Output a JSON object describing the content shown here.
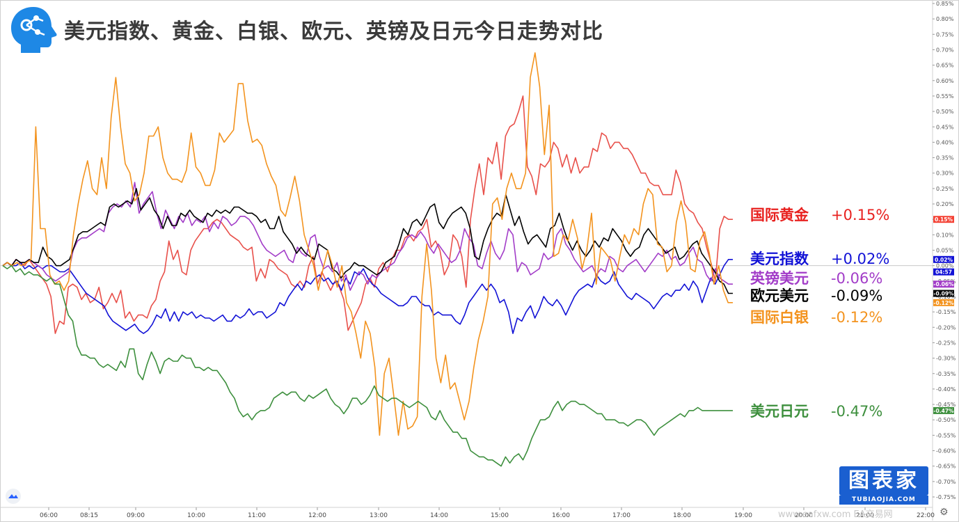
{
  "title": "美元指数、黄金、白银、欧元、英镑及日元今日走势对比",
  "brand": {
    "main": "图表家",
    "sub": "TUBIAOJIA.COM"
  },
  "watermark": "www.eafxw.com  EA交易网",
  "chart_data": {
    "type": "line",
    "y_unit": "%",
    "ylim": [
      -0.77,
      0.87
    ],
    "y_ticks": [
      "0.85%",
      "0.80%",
      "0.75%",
      "0.70%",
      "0.65%",
      "0.60%",
      "0.55%",
      "0.50%",
      "0.45%",
      "0.40%",
      "0.35%",
      "0.30%",
      "0.25%",
      "0.20%",
      "0.15%",
      "0.10%",
      "0.05%",
      "0.00%",
      "-0.05%",
      "-0.10%",
      "-0.15%",
      "-0.20%",
      "-0.25%",
      "-0.30%",
      "-0.35%",
      "-0.40%",
      "-0.45%",
      "-0.50%",
      "-0.55%",
      "-0.60%",
      "-0.65%",
      "-0.70%",
      "-0.75%"
    ],
    "x_ticks": [
      "06:00",
      "08:15",
      "09:00",
      "10:00",
      "11:00",
      "12:00",
      "13:00",
      "14:00",
      "15:00",
      "16:00",
      "17:00",
      "18:00",
      "19:00",
      "20:00",
      "21:00",
      "22:00"
    ],
    "x_start": "04:57",
    "x_end": "18:52",
    "current_time_label": "04:57",
    "legend": [
      {
        "name": "国际黄金",
        "value": "+0.15%",
        "color": "#e8211f"
      },
      {
        "name": "美元指数",
        "value": "+0.02%",
        "color": "#1212d6"
      },
      {
        "name": "英镑美元",
        "value": "-0.06%",
        "color": "#a23cc8"
      },
      {
        "name": "欧元美元",
        "value": "-0.09%",
        "color": "#000000"
      },
      {
        "name": "国际白银",
        "value": "-0.12%",
        "color": "#f3931e"
      },
      {
        "name": "美元日元",
        "value": "-0.47%",
        "color": "#3d8f3d"
      }
    ],
    "series": [
      {
        "name": "国际黄金",
        "color": "#e8504a",
        "last": "0.15%",
        "values": [
          0,
          0.01,
          0,
          0.02,
          0.01,
          0,
          0.02,
          0,
          -0.02,
          -0.04,
          -0.06,
          -0.1,
          -0.22,
          -0.18,
          -0.19,
          -0.07,
          -0.06,
          -0.07,
          -0.11,
          -0.09,
          -0.12,
          -0.11,
          -0.07,
          -0.14,
          -0.12,
          -0.09,
          -0.12,
          -0.08,
          -0.17,
          -0.15,
          -0.18,
          -0.16,
          -0.16,
          -0.17,
          -0.13,
          -0.11,
          -0.05,
          -0.02,
          0.08,
          0.02,
          0.05,
          -0.02,
          -0.03,
          0.05,
          0.08,
          0.1,
          0.12,
          0.12,
          0.14,
          0.15,
          0.14,
          0.12,
          0.1,
          0.09,
          0.08,
          0.06,
          0.05,
          0.06,
          -0.05,
          -0.01,
          -0.04,
          0.02,
          0.01,
          -0.01,
          -0.02,
          -0.03,
          -0.06,
          -0.07,
          -0.05,
          -0.07,
          0,
          0.03,
          -0.06,
          -0.02,
          -0.05,
          -0.08,
          -0.05,
          -0.07,
          -0.11,
          -0.21,
          -0.18,
          -0.15,
          -0.12,
          -0.06,
          -0.04,
          -0.07,
          -0.01,
          0.01,
          -0.02,
          0.02,
          0.05,
          0.05,
          0.09,
          0.1,
          0.08,
          0.11,
          0.12,
          0.15,
          0.06,
          0.08,
          0.05,
          -0.03,
          0,
          0.1,
          0.08,
          0.03,
          -0.07,
          0.15,
          0.25,
          0.33,
          0.23,
          0.35,
          0.33,
          0.4,
          0.28,
          0.42,
          0.45,
          0.46,
          0.5,
          0.55,
          0.32,
          0.29,
          0.23,
          0.33,
          0.32,
          0.34,
          0.4,
          0.38,
          0.32,
          0.36,
          0.3,
          0.35,
          0.3,
          0.32,
          0.32,
          0.38,
          0.37,
          0.43,
          0.42,
          0.38,
          0.4,
          0.4,
          0.38,
          0.38,
          0.36,
          0.33,
          0.3,
          0.3,
          0.27,
          0.26,
          0.26,
          0.23,
          0.23,
          0.23,
          0.31,
          0.27,
          0.2,
          0.18,
          0.17,
          0.14,
          0.12,
          0.06,
          0.01,
          -0.05,
          0.12,
          0.16,
          0.15,
          0.15
        ]
      },
      {
        "name": "美元指数",
        "color": "#1212d6",
        "last": "0.02%",
        "values": [
          0,
          0.01,
          0,
          0,
          0.01,
          -0.01,
          0,
          -0.01,
          0,
          -0.01,
          0,
          0,
          -0.01,
          -0.02,
          -0.02,
          -0.01,
          -0.03,
          -0.05,
          -0.07,
          -0.09,
          -0.1,
          -0.11,
          -0.12,
          -0.13,
          -0.16,
          -0.18,
          -0.19,
          -0.2,
          -0.21,
          -0.2,
          -0.19,
          -0.21,
          -0.22,
          -0.21,
          -0.19,
          -0.16,
          -0.17,
          -0.14,
          -0.18,
          -0.15,
          -0.18,
          -0.15,
          -0.16,
          -0.15,
          -0.17,
          -0.16,
          -0.17,
          -0.17,
          -0.18,
          -0.17,
          -0.16,
          -0.18,
          -0.18,
          -0.16,
          -0.17,
          -0.16,
          -0.14,
          -0.16,
          -0.15,
          -0.15,
          -0.17,
          -0.16,
          -0.15,
          -0.12,
          -0.13,
          -0.1,
          -0.08,
          -0.06,
          -0.08,
          -0.05,
          -0.06,
          -0.04,
          -0.03,
          -0.05,
          -0.04,
          -0.06,
          -0.05,
          -0.08,
          -0.04,
          -0.06,
          -0.02,
          -0.03,
          -0.01,
          -0.04,
          -0.06,
          -0.07,
          -0.09,
          -0.1,
          -0.11,
          -0.12,
          -0.13,
          -0.13,
          -0.12,
          -0.1,
          -0.1,
          -0.12,
          -0.13,
          -0.13,
          -0.16,
          -0.15,
          -0.16,
          -0.16,
          -0.16,
          -0.18,
          -0.19,
          -0.16,
          -0.12,
          -0.1,
          -0.08,
          -0.06,
          -0.08,
          -0.06,
          -0.08,
          -0.12,
          -0.11,
          -0.15,
          -0.22,
          -0.17,
          -0.18,
          -0.15,
          -0.13,
          -0.17,
          -0.14,
          -0.1,
          -0.12,
          -0.13,
          -0.11,
          -0.13,
          -0.16,
          -0.13,
          -0.1,
          -0.08,
          -0.07,
          -0.06,
          -0.07,
          -0.03,
          -0.05,
          -0.06,
          -0.05,
          -0.02,
          -0.06,
          -0.08,
          -0.1,
          -0.11,
          -0.09,
          -0.1,
          -0.11,
          -0.12,
          -0.14,
          -0.12,
          -0.1,
          -0.09,
          -0.1,
          -0.08,
          -0.08,
          -0.06,
          -0.08,
          -0.05,
          -0.07,
          -0.12,
          -0.08,
          -0.04,
          -0.06,
          -0.03,
          0,
          0.02,
          0.02
        ]
      },
      {
        "name": "英镑美元",
        "color": "#a23cc8",
        "last": "-0.06%",
        "values": [
          0,
          0.01,
          0,
          0.02,
          0.01,
          0.01,
          0.02,
          0.01,
          0,
          -0.01,
          -0.03,
          -0.04,
          -0.05,
          -0.04,
          -0.03,
          -0.02,
          0.05,
          0.08,
          0.09,
          0.09,
          0.1,
          0.11,
          0.12,
          0.11,
          0.17,
          0.19,
          0.2,
          0.19,
          0.21,
          0.19,
          0.27,
          0.17,
          0.2,
          0.22,
          0.24,
          0.17,
          0.12,
          0.18,
          0.15,
          0.12,
          0.16,
          0.14,
          0.17,
          0.13,
          0.15,
          0.14,
          0.16,
          0.11,
          0.14,
          0.12,
          0.16,
          0.15,
          0.13,
          0.14,
          0.16,
          0.16,
          0.15,
          0.13,
          0.1,
          0.07,
          0.05,
          0.04,
          0.03,
          0.04,
          0.05,
          0.02,
          0.01,
          0.06,
          0.04,
          0.03,
          0.09,
          0.1,
          0.03,
          -0.01,
          0,
          -0.02,
          0.01,
          -0.05,
          -0.03,
          -0.08,
          -0.05,
          -0.02,
          -0.03,
          -0.06,
          -0.03,
          -0.04,
          -0.02,
          -0.01,
          0,
          0.01,
          0.04,
          0.06,
          0.09,
          0.1,
          0.09,
          0.11,
          0.09,
          0.06,
          0.04,
          0.07,
          0.05,
          0.03,
          0.01,
          0.02,
          0.05,
          0.12,
          0.09,
          0.07,
          0,
          -0.01,
          0.04,
          0.08,
          0.04,
          0.02,
          0.05,
          0.12,
          0.1,
          -0.02,
          0.01,
          0,
          -0.03,
          -0.02,
          -0.01,
          0.04,
          0.02,
          0.03,
          0.1,
          0.12,
          0.07,
          0.05,
          0.02,
          0,
          -0.02,
          -0.01,
          0,
          -0.03,
          -0.01,
          -0.02,
          0.03,
          0.02,
          -0.01,
          -0.02,
          0,
          0.01,
          0.02,
          0,
          -0.02,
          0,
          0.02,
          0.04,
          0.03,
          0.05,
          0.02,
          0.03,
          0,
          0.01,
          0.04,
          0.06,
          0.02,
          0.01,
          -0.03,
          -0.05,
          -0.01,
          -0.04,
          -0.05,
          -0.06,
          -0.06
        ]
      },
      {
        "name": "欧元美元",
        "color": "#000000",
        "last": "-0.09%",
        "values": [
          0,
          0.01,
          0,
          0.02,
          0.01,
          0.01,
          0.02,
          0.01,
          0.01,
          0.06,
          0.03,
          0.02,
          0,
          0,
          0.01,
          0.02,
          0.06,
          0.1,
          0.11,
          0.11,
          0.12,
          0.13,
          0.14,
          0.13,
          0.19,
          0.2,
          0.19,
          0.2,
          0.21,
          0.2,
          0.25,
          0.18,
          0.2,
          0.22,
          0.18,
          0.16,
          0.12,
          0.16,
          0.13,
          0.13,
          0.17,
          0.16,
          0.18,
          0.16,
          0.15,
          0.14,
          0.17,
          0.16,
          0.18,
          0.17,
          0.18,
          0.17,
          0.19,
          0.19,
          0.18,
          0.17,
          0.17,
          0.16,
          0.14,
          0.15,
          0.12,
          0.12,
          0.16,
          0.11,
          0.09,
          0.07,
          0.04,
          0.06,
          0.04,
          0.03,
          0.02,
          0.07,
          0.06,
          0.05,
          -0.01,
          -0.02,
          -0.04,
          -0.02,
          -0.01,
          0.01,
          0,
          0,
          -0.01,
          -0.02,
          -0.03,
          -0.02,
          0.01,
          0.02,
          0.03,
          0.07,
          0.12,
          0.1,
          0.14,
          0.15,
          0.13,
          0.16,
          0.19,
          0.2,
          0.14,
          0.12,
          0.15,
          0.17,
          0.18,
          0.19,
          0.17,
          0.12,
          0.03,
          0.02,
          0.08,
          0.12,
          0.15,
          0.17,
          0.16,
          0.23,
          0.18,
          0.13,
          0.16,
          0.11,
          0.07,
          0.09,
          0.1,
          0.08,
          0.06,
          0.12,
          0.13,
          0.17,
          0.12,
          0.08,
          0.05,
          0.08,
          0.05,
          0.03,
          0.05,
          0.08,
          0.06,
          0.09,
          0.08,
          0.12,
          0.1,
          0.08,
          0.05,
          0.03,
          0.05,
          0.06,
          0.1,
          0.12,
          0.1,
          0.08,
          0.06,
          0.04,
          0.05,
          0.06,
          0.02,
          0.03,
          0.05,
          0.07,
          0.08,
          0.04,
          0.02,
          0,
          -0.02,
          -0.05,
          -0.06,
          -0.09,
          -0.09
        ]
      },
      {
        "name": "国际白银",
        "color": "#f3931e",
        "last": "-0.12%",
        "values": [
          0,
          0.01,
          0,
          0.01,
          0,
          0.01,
          0.02,
          0.45,
          0.12,
          0.12,
          -0.03,
          -0.06,
          -0.05,
          -0.08,
          -0.05,
          0.1,
          0.2,
          0.28,
          0.34,
          0.25,
          0.23,
          0.35,
          0.25,
          0.48,
          0.61,
          0.45,
          0.33,
          0.3,
          0.21,
          0.23,
          0.3,
          0.42,
          0.42,
          0.45,
          0.35,
          0.3,
          0.28,
          0.28,
          0.27,
          0.31,
          0.43,
          0.32,
          0.3,
          0.26,
          0.26,
          0.31,
          0.43,
          0.4,
          0.42,
          0.44,
          0.59,
          0.59,
          0.47,
          0.4,
          0.41,
          0.39,
          0.33,
          0.29,
          0.26,
          0.18,
          0.16,
          0.22,
          0.29,
          0.21,
          0.1,
          0.05,
          0,
          -0.08,
          -0.01,
          0.05,
          0,
          -0.07,
          0,
          -0.12,
          -0.15,
          -0.22,
          -0.3,
          -0.18,
          -0.22,
          -0.33,
          -0.55,
          -0.35,
          -0.3,
          -0.42,
          -0.55,
          -0.44,
          -0.53,
          -0.52,
          -0.49,
          -0.1,
          0.07,
          -0.08,
          -0.3,
          -0.38,
          -0.29,
          -0.4,
          -0.38,
          -0.44,
          -0.5,
          -0.44,
          -0.33,
          -0.24,
          -0.18,
          -0.1,
          0.2,
          0.22,
          0.15,
          0.25,
          0.3,
          0.25,
          0.25,
          0.3,
          0.61,
          0.69,
          0.58,
          0.36,
          0.52,
          0.03,
          0.04,
          0.1,
          0.08,
          0.15,
          0.09,
          -0.01,
          0.05,
          0.17,
          -0.06,
          0.06,
          0.04,
          0.02,
          -0.05,
          0.03,
          0.1,
          0.07,
          0.12,
          0.1,
          0.2,
          0.25,
          0.23,
          0.07,
          0.06,
          -0.02,
          0,
          0.14,
          0.21,
          0.14,
          -0.01,
          -0.02,
          0.08,
          0.11,
          0.04,
          -0.06,
          0,
          -0.08,
          -0.12,
          -0.12
        ]
      },
      {
        "name": "美元日元",
        "color": "#3d8f3d",
        "last": "-0.47%",
        "values": [
          0,
          -0.01,
          0,
          -0.02,
          -0.01,
          -0.03,
          -0.02,
          -0.03,
          -0.03,
          -0.04,
          -0.05,
          -0.04,
          -0.06,
          -0.06,
          -0.11,
          -0.16,
          -0.18,
          -0.26,
          -0.29,
          -0.29,
          -0.3,
          -0.3,
          -0.32,
          -0.33,
          -0.32,
          -0.33,
          -0.34,
          -0.31,
          -0.33,
          -0.27,
          -0.27,
          -0.35,
          -0.37,
          -0.32,
          -0.28,
          -0.31,
          -0.35,
          -0.31,
          -0.3,
          -0.31,
          -0.31,
          -0.29,
          -0.3,
          -0.3,
          -0.33,
          -0.33,
          -0.34,
          -0.33,
          -0.34,
          -0.34,
          -0.36,
          -0.38,
          -0.41,
          -0.43,
          -0.47,
          -0.49,
          -0.48,
          -0.5,
          -0.48,
          -0.47,
          -0.47,
          -0.46,
          -0.43,
          -0.42,
          -0.41,
          -0.42,
          -0.41,
          -0.41,
          -0.43,
          -0.44,
          -0.42,
          -0.43,
          -0.42,
          -0.41,
          -0.4,
          -0.43,
          -0.45,
          -0.46,
          -0.48,
          -0.46,
          -0.43,
          -0.43,
          -0.45,
          -0.44,
          -0.42,
          -0.39,
          -0.42,
          -0.43,
          -0.44,
          -0.43,
          -0.43,
          -0.44,
          -0.45,
          -0.46,
          -0.45,
          -0.44,
          -0.45,
          -0.46,
          -0.49,
          -0.5,
          -0.47,
          -0.5,
          -0.52,
          -0.54,
          -0.54,
          -0.56,
          -0.56,
          -0.6,
          -0.61,
          -0.62,
          -0.62,
          -0.63,
          -0.63,
          -0.64,
          -0.65,
          -0.62,
          -0.64,
          -0.62,
          -0.61,
          -0.63,
          -0.6,
          -0.56,
          -0.53,
          -0.5,
          -0.5,
          -0.49,
          -0.46,
          -0.44,
          -0.47,
          -0.45,
          -0.44,
          -0.44,
          -0.45,
          -0.45,
          -0.46,
          -0.47,
          -0.48,
          -0.48,
          -0.5,
          -0.5,
          -0.5,
          -0.51,
          -0.51,
          -0.52,
          -0.51,
          -0.5,
          -0.5,
          -0.51,
          -0.53,
          -0.55,
          -0.53,
          -0.52,
          -0.51,
          -0.5,
          -0.49,
          -0.48,
          -0.49,
          -0.47,
          -0.47,
          -0.46,
          -0.47,
          -0.47,
          -0.47,
          -0.47,
          -0.47,
          -0.47,
          -0.47,
          -0.47
        ]
      }
    ]
  }
}
